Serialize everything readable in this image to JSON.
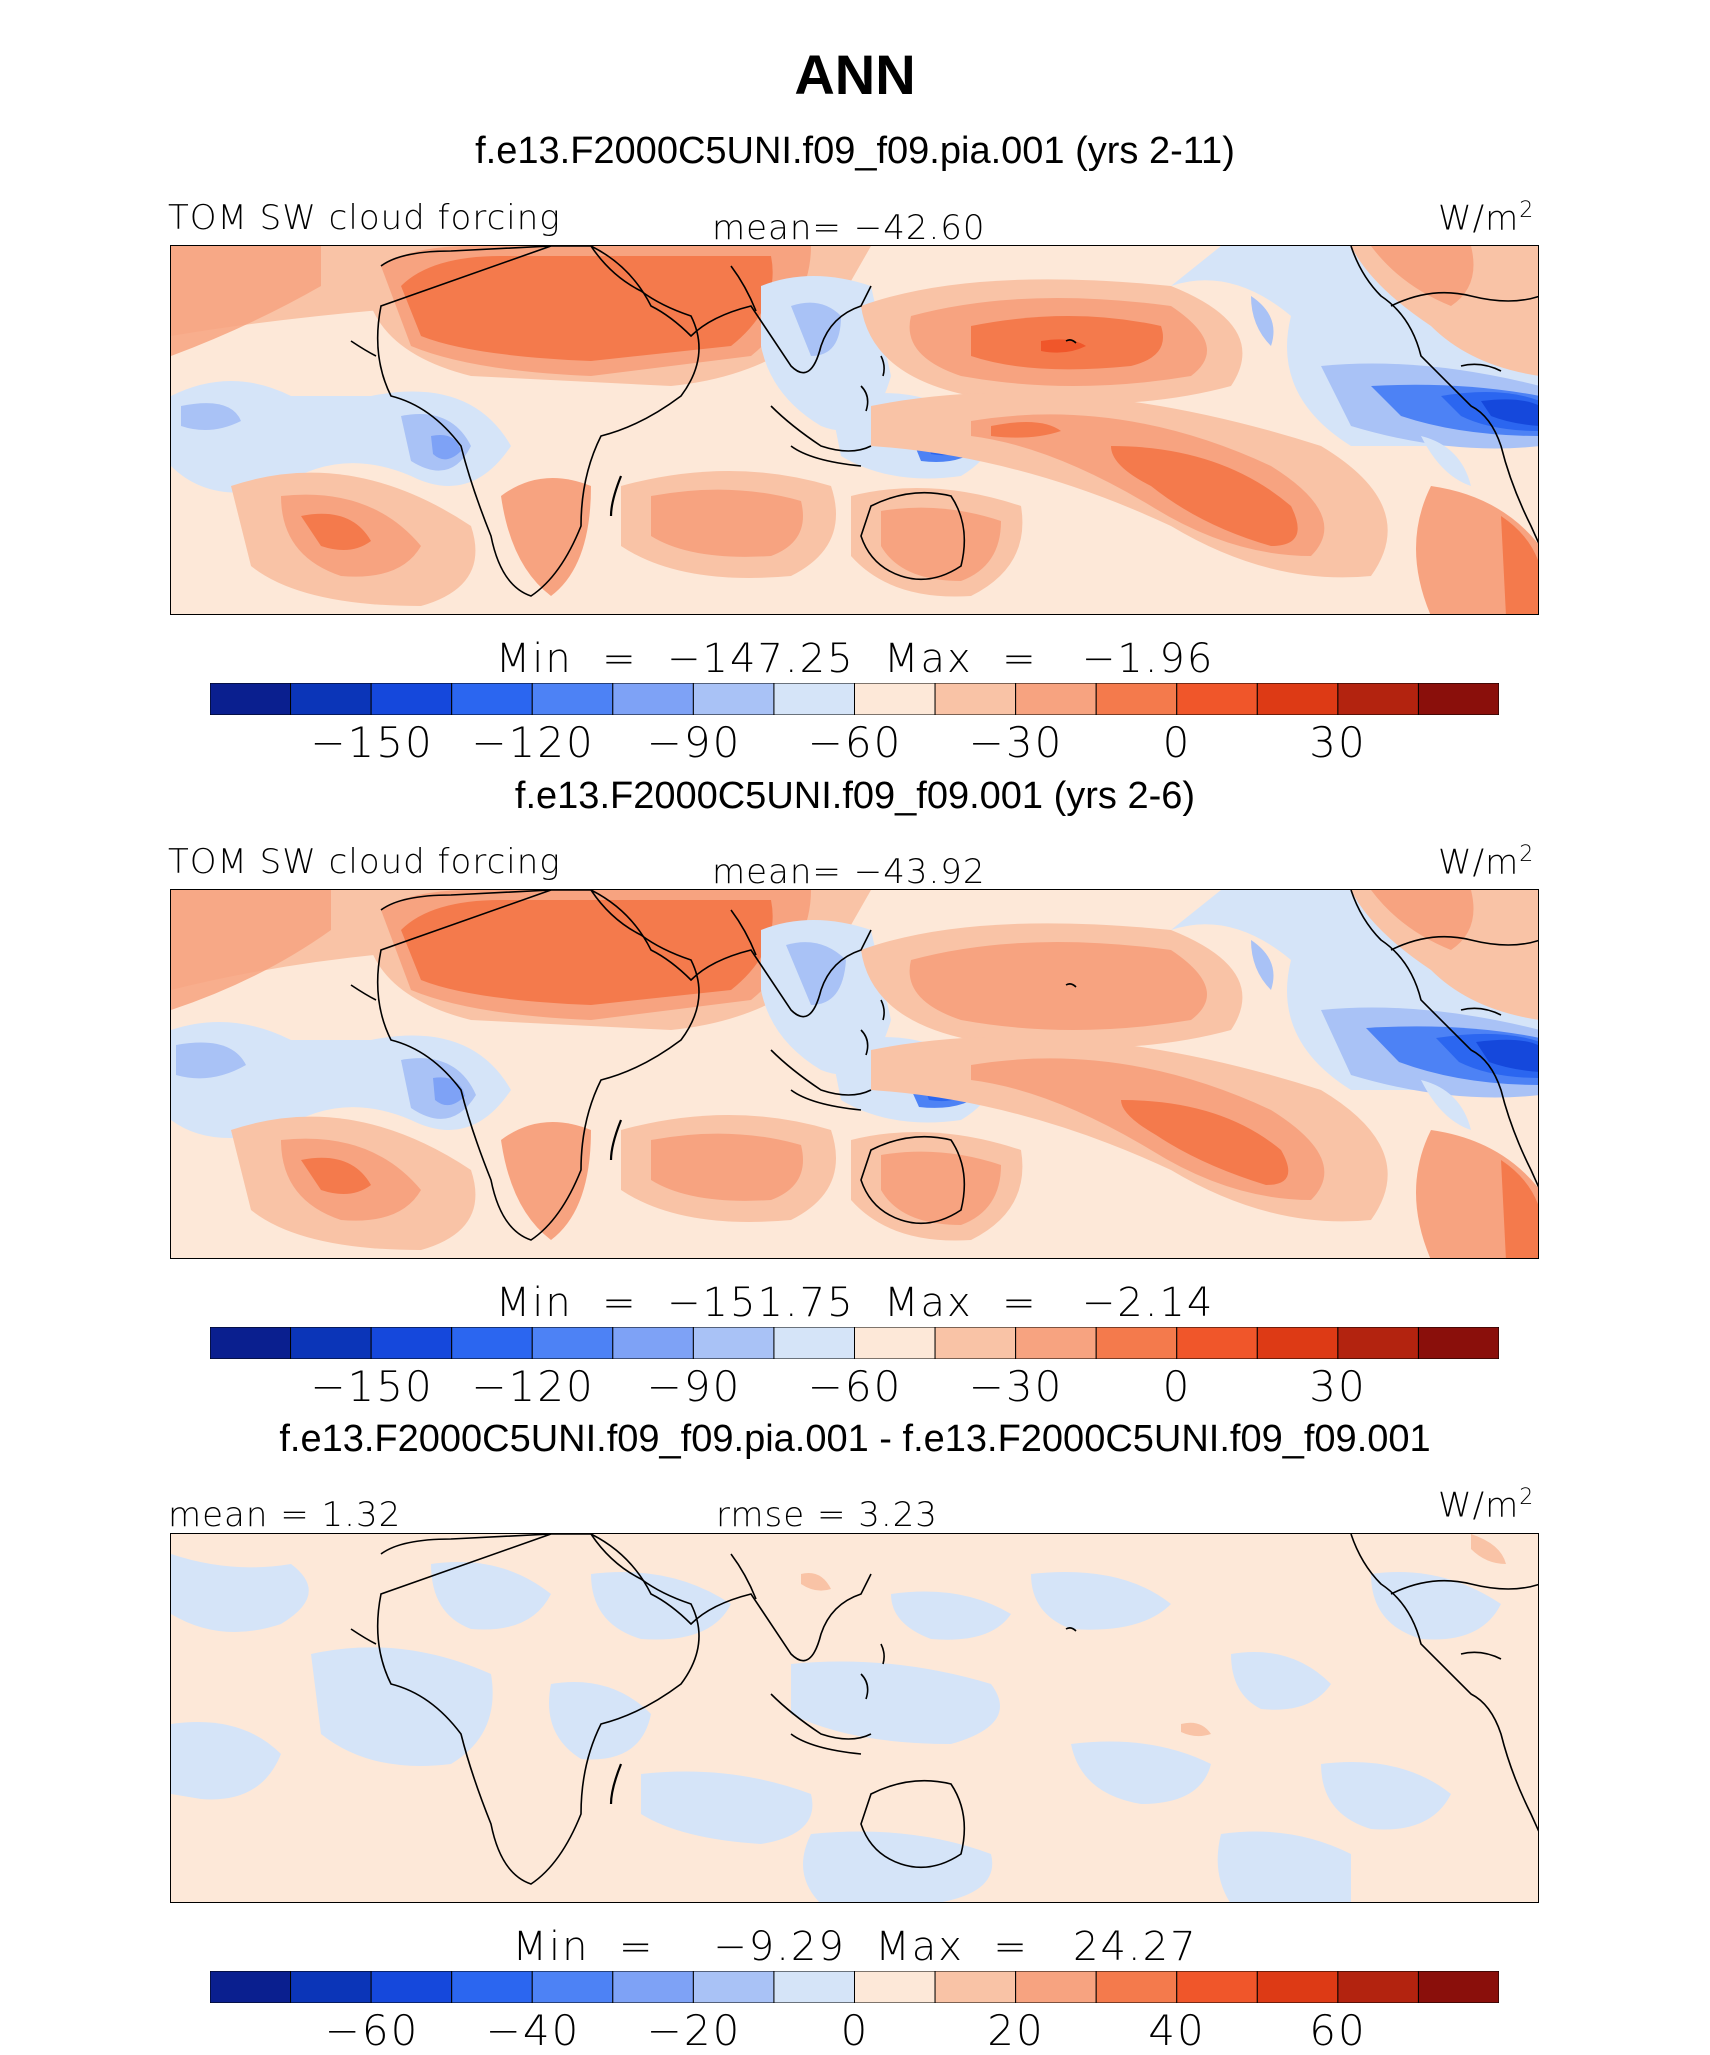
{
  "title": "ANN",
  "colors": [
    "#0a1f8f",
    "#0b35b8",
    "#1548dc",
    "#2b66f0",
    "#4d82f5",
    "#7ea2f6",
    "#a9c2f6",
    "#d5e4f8",
    "#fde8d8",
    "#f9c3a6",
    "#f7a380",
    "#f47a4c",
    "#f0562a",
    "#dd3a15",
    "#b3230f",
    "#8a0f0b"
  ],
  "panels": [
    {
      "subtitle": "f.e13.F2000C5UNI.f09_f09.pia.001 (yrs 2-11)",
      "left_label": "TOM SW cloud forcing",
      "center_label": "mean= −42.60",
      "units": "W/m",
      "units_sup": "2",
      "minmax": "Min  =  −147.25  Max  =   −1.96",
      "ticks": [
        "−150",
        "−120",
        "−90",
        "−60",
        "−30",
        "0",
        "30"
      ]
    },
    {
      "subtitle": "f.e13.F2000C5UNI.f09_f09.001 (yrs 2-6)",
      "left_label": "TOM SW cloud forcing",
      "center_label": "mean= −43.92",
      "units": "W/m",
      "units_sup": "2",
      "minmax": "Min  =  −151.75  Max  =   −2.14",
      "ticks": [
        "−150",
        "−120",
        "−90",
        "−60",
        "−30",
        "0",
        "30"
      ]
    },
    {
      "subtitle": "f.e13.F2000C5UNI.f09_f09.pia.001 - f.e13.F2000C5UNI.f09_f09.001",
      "left_label": "mean =    1.32",
      "center_label": "rmse =    3.23",
      "units": "W/m",
      "units_sup": "2",
      "minmax": "Min  =    −9.29  Max  =   24.27",
      "ticks": [
        "−60",
        "−40",
        "−20",
        "0",
        "20",
        "40",
        "60"
      ]
    }
  ]
}
